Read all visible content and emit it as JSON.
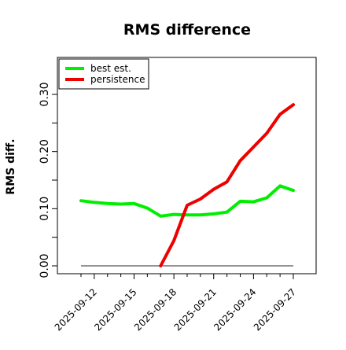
{
  "chart_data": {
    "type": "line",
    "title": "RMS difference",
    "xlabel": "",
    "ylabel": "RMS diff.",
    "x": [
      "2025-09-11",
      "2025-09-12",
      "2025-09-13",
      "2025-09-14",
      "2025-09-15",
      "2025-09-16",
      "2025-09-17",
      "2025-09-18",
      "2025-09-19",
      "2025-09-20",
      "2025-09-21",
      "2025-09-22",
      "2025-09-23",
      "2025-09-24",
      "2025-09-25",
      "2025-09-26",
      "2025-09-27"
    ],
    "xticks": [
      "2025-09-12",
      "2025-09-15",
      "2025-09-18",
      "2025-09-21",
      "2025-09-24",
      "2025-09-27"
    ],
    "yticks": [
      "0.00",
      "0.10",
      "0.20",
      "0.30"
    ],
    "ylim": [
      0,
      0.36
    ],
    "legend_position": "top-left",
    "baseline": 0,
    "series": [
      {
        "name": "best est.",
        "color": "#00ee00",
        "values": [
          0.114,
          0.111,
          0.109,
          0.108,
          0.109,
          0.101,
          0.087,
          0.09,
          0.089,
          0.089,
          0.091,
          0.094,
          0.113,
          0.112,
          0.119,
          0.14,
          0.132
        ]
      },
      {
        "name": "persistence",
        "color": "#ee0000",
        "values": [
          null,
          null,
          null,
          null,
          null,
          null,
          0.0,
          0.044,
          0.106,
          0.117,
          0.134,
          0.147,
          0.184,
          0.208,
          0.232,
          0.265,
          0.282
        ]
      }
    ]
  }
}
